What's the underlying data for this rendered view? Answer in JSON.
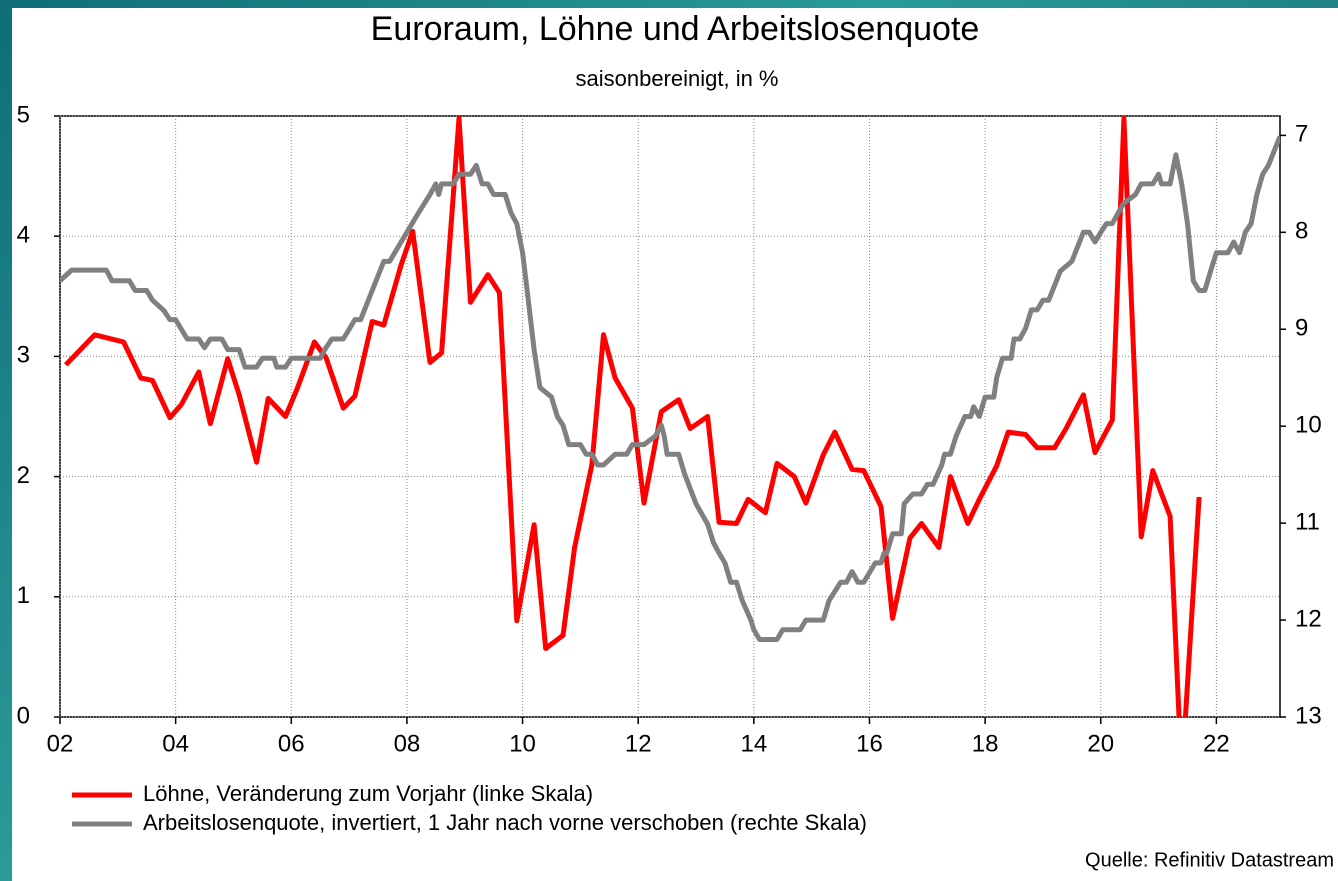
{
  "chart_data": {
    "type": "line",
    "title": "Euroraum, Löhne und Arbeitslosenquote",
    "subtitle": "saisonbereinigt, in %",
    "source": "Quelle: Refinitiv Datastream",
    "xlim": [
      2002,
      2023.1
    ],
    "xticks": [
      {
        "value": 2002,
        "label": "02"
      },
      {
        "value": 2004,
        "label": "04"
      },
      {
        "value": 2006,
        "label": "06"
      },
      {
        "value": 2008,
        "label": "08"
      },
      {
        "value": 2010,
        "label": "10"
      },
      {
        "value": 2012,
        "label": "12"
      },
      {
        "value": 2014,
        "label": "14"
      },
      {
        "value": 2016,
        "label": "16"
      },
      {
        "value": 2018,
        "label": "18"
      },
      {
        "value": 2020,
        "label": "20"
      },
      {
        "value": 2022,
        "label": "22"
      }
    ],
    "ylim": [
      0,
      5
    ],
    "yticks": [
      0,
      1,
      2,
      3,
      4,
      5
    ],
    "y2lim": [
      13,
      6.8
    ],
    "y2ticks": [
      7,
      8,
      9,
      10,
      11,
      12,
      13
    ],
    "grid": true,
    "legend": "bottom-left",
    "series": [
      {
        "name": "Löhne, Veränderung zum Vorjahr (linke Skala)",
        "color": "#ff0000",
        "x": [
          2002.1,
          2002.6,
          2003.1,
          2003.4,
          2003.6,
          2003.9,
          2004.1,
          2004.4,
          2004.6,
          2004.9,
          2005.1,
          2005.4,
          2005.6,
          2005.9,
          2006.1,
          2006.4,
          2006.6,
          2006.9,
          2007.1,
          2007.4,
          2007.6,
          2007.9,
          2008.1,
          2008.4,
          2008.6,
          2008.9,
          2009.1,
          2009.4,
          2009.6,
          2009.9,
          2010.2,
          2010.4,
          2010.7,
          2010.9,
          2011.2,
          2011.4,
          2011.6,
          2011.9,
          2012.1,
          2012.4,
          2012.7,
          2012.9,
          2013.2,
          2013.4,
          2013.7,
          2013.9,
          2014.2,
          2014.4,
          2014.7,
          2014.9,
          2015.2,
          2015.4,
          2015.7,
          2015.9,
          2016.2,
          2016.4,
          2016.7,
          2016.9,
          2017.2,
          2017.4,
          2017.7,
          2017.9,
          2018.2,
          2018.4,
          2018.7,
          2018.9,
          2019.2,
          2019.4,
          2019.7,
          2019.9,
          2020.2,
          2020.4,
          2020.7,
          2020.9,
          2021.2,
          2021.4,
          2021.7
        ],
        "values": [
          2.93,
          3.18,
          3.12,
          2.82,
          2.8,
          2.49,
          2.6,
          2.87,
          2.44,
          2.98,
          2.68,
          2.12,
          2.65,
          2.5,
          2.73,
          3.12,
          2.99,
          2.57,
          2.67,
          3.29,
          3.26,
          3.76,
          4.04,
          2.95,
          3.03,
          4.98,
          3.45,
          3.68,
          3.53,
          0.8,
          1.6,
          0.57,
          0.68,
          1.41,
          2.1,
          3.18,
          2.82,
          2.57,
          1.78,
          2.54,
          2.64,
          2.4,
          2.5,
          1.62,
          1.61,
          1.81,
          1.7,
          2.11,
          2.0,
          1.78,
          2.18,
          2.37,
          2.06,
          2.05,
          1.75,
          0.82,
          1.49,
          1.61,
          1.41,
          2.0,
          1.61,
          1.81,
          2.09,
          2.37,
          2.35,
          2.24,
          2.24,
          2.4,
          2.68,
          2.2,
          2.47,
          4.98,
          1.5,
          2.05,
          1.67,
          -0.5,
          1.83
        ]
      },
      {
        "name": "Arbeitslosenquote, invertiert, 1 Jahr nach vorne verschoben (rechte Skala)",
        "color": "#808080",
        "axis": "y2",
        "x": [
          2002.0,
          2002.2,
          2002.8,
          2002.9,
          2003.2,
          2003.3,
          2003.5,
          2003.6,
          2003.8,
          2003.9,
          2004.0,
          2004.2,
          2004.4,
          2004.5,
          2004.6,
          2004.8,
          2004.9,
          2005.1,
          2005.2,
          2005.4,
          2005.5,
          2005.7,
          2005.75,
          2005.9,
          2006.0,
          2006.5,
          2006.6,
          2006.7,
          2006.9,
          2007.1,
          2007.2,
          2007.4,
          2007.6,
          2007.7,
          2007.9,
          2008.0,
          2008.2,
          2008.4,
          2008.5,
          2008.55,
          2008.6,
          2008.8,
          2008.9,
          2009.1,
          2009.2,
          2009.3,
          2009.4,
          2009.5,
          2009.7,
          2009.8,
          2009.9,
          2010.0,
          2010.1,
          2010.2,
          2010.3,
          2010.5,
          2010.6,
          2010.7,
          2010.8,
          2011.0,
          2011.1,
          2011.2,
          2011.3,
          2011.4,
          2011.6,
          2011.8,
          2011.9,
          2012.1,
          2012.3,
          2012.4,
          2012.45,
          2012.5,
          2012.7,
          2012.8,
          2013.0,
          2013.2,
          2013.3,
          2013.4,
          2013.5,
          2013.6,
          2013.7,
          2013.8,
          2013.95,
          2014.0,
          2014.1,
          2014.4,
          2014.5,
          2014.8,
          2014.9,
          2015.2,
          2015.3,
          2015.5,
          2015.6,
          2015.7,
          2015.8,
          2015.9,
          2016.1,
          2016.2,
          2016.25,
          2016.3,
          2016.4,
          2016.55,
          2016.6,
          2016.75,
          2016.9,
          2017.0,
          2017.1,
          2017.25,
          2017.3,
          2017.4,
          2017.5,
          2017.65,
          2017.75,
          2017.8,
          2017.9,
          2018.0,
          2018.15,
          2018.2,
          2018.3,
          2018.45,
          2018.5,
          2018.6,
          2018.7,
          2018.8,
          2018.9,
          2019.0,
          2019.1,
          2019.3,
          2019.5,
          2019.7,
          2019.8,
          2019.9,
          2020.0,
          2020.1,
          2020.2,
          2020.3,
          2020.4,
          2020.6,
          2020.7,
          2020.9,
          2021.0,
          2021.05,
          2021.2,
          2021.3,
          2021.4,
          2021.5,
          2021.6,
          2021.7,
          2021.8,
          2021.9,
          2022.0,
          2022.2,
          2022.3,
          2022.4,
          2022.5,
          2022.6,
          2022.7,
          2022.8,
          2022.9,
          2023.1
        ],
        "values": [
          8.5,
          8.39,
          8.39,
          8.5,
          8.5,
          8.6,
          8.6,
          8.7,
          8.81,
          8.9,
          8.9,
          9.1,
          9.1,
          9.19,
          9.1,
          9.1,
          9.21,
          9.21,
          9.39,
          9.39,
          9.3,
          9.3,
          9.39,
          9.39,
          9.3,
          9.3,
          9.19,
          9.1,
          9.1,
          8.9,
          8.9,
          8.6,
          8.3,
          8.3,
          8.1,
          8.0,
          7.8,
          7.61,
          7.5,
          7.61,
          7.5,
          7.5,
          7.4,
          7.4,
          7.31,
          7.5,
          7.5,
          7.61,
          7.61,
          7.8,
          7.91,
          8.21,
          8.7,
          9.21,
          9.6,
          9.7,
          9.9,
          9.99,
          10.19,
          10.19,
          10.29,
          10.29,
          10.4,
          10.4,
          10.29,
          10.29,
          10.19,
          10.19,
          10.1,
          9.99,
          10.1,
          10.29,
          10.29,
          10.49,
          10.8,
          11.01,
          11.2,
          11.31,
          11.41,
          11.61,
          11.61,
          11.8,
          12.0,
          12.1,
          12.2,
          12.2,
          12.1,
          12.1,
          12.0,
          12.0,
          11.8,
          11.61,
          11.61,
          11.5,
          11.61,
          11.61,
          11.41,
          11.41,
          11.31,
          11.31,
          11.11,
          11.11,
          10.8,
          10.7,
          10.7,
          10.6,
          10.6,
          10.4,
          10.29,
          10.29,
          10.1,
          9.9,
          9.9,
          9.8,
          9.9,
          9.7,
          9.7,
          9.5,
          9.3,
          9.3,
          9.1,
          9.1,
          8.99,
          8.8,
          8.8,
          8.7,
          8.7,
          8.4,
          8.3,
          8.0,
          8.0,
          8.1,
          8.0,
          7.91,
          7.91,
          7.8,
          7.7,
          7.61,
          7.5,
          7.5,
          7.4,
          7.5,
          7.5,
          7.2,
          7.5,
          7.91,
          8.5,
          8.6,
          8.6,
          8.4,
          8.21,
          8.21,
          8.1,
          8.21,
          8.0,
          7.91,
          7.61,
          7.4,
          7.31,
          7.01
        ]
      }
    ]
  }
}
